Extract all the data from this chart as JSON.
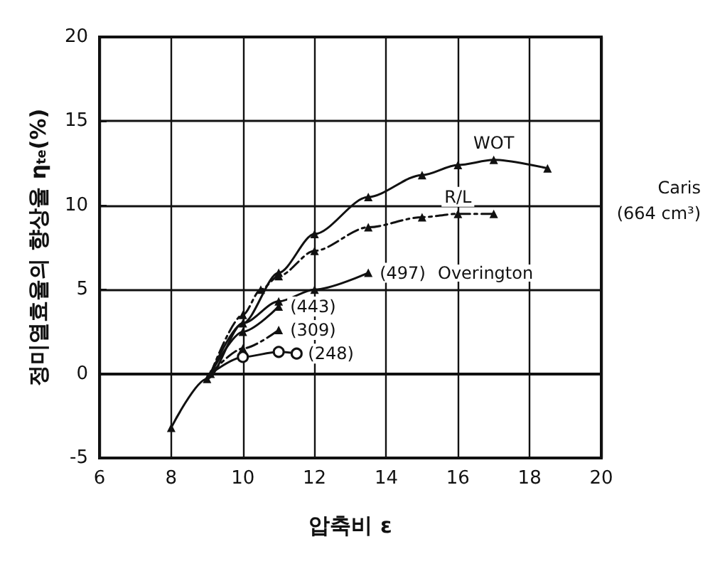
{
  "chart_data": {
    "type": "line",
    "xlabel": "압축비 ε",
    "ylabel": "정미열효율의 향상율 η$_{te}$(%)",
    "xlim": [
      6,
      20
    ],
    "xticks": [
      6,
      8,
      10,
      12,
      14,
      16,
      18,
      20
    ],
    "ylim": [
      -5,
      20
    ],
    "yticks": [
      -5,
      0,
      5,
      10,
      15,
      20
    ],
    "grid": true,
    "legend": false,
    "marker": "triangle",
    "line_style": "solid",
    "series": [
      {
        "name": "WOT",
        "color": "#111111",
        "x": [
          8,
          9,
          10,
          11,
          12,
          13.5,
          15,
          16,
          17,
          18.5
        ],
        "values": [
          -3.2,
          -0.3,
          3,
          6,
          8.3,
          10.5,
          11.8,
          12.4,
          12.7,
          12.2
        ]
      },
      {
        "name": "R/L",
        "color": "#111111",
        "line_style": "dashed",
        "x": [
          9.1,
          10,
          10.5,
          11,
          12,
          13.5,
          15,
          16,
          17
        ],
        "values": [
          0,
          3.5,
          5,
          5.8,
          7.3,
          8.7,
          9.3,
          9.5,
          9.5
        ]
      },
      {
        "name": "(497)",
        "color": "#111111",
        "x": [
          9.1,
          10,
          11,
          12,
          13.5
        ],
        "values": [
          0,
          3,
          4.3,
          5,
          6
        ]
      },
      {
        "name": "(443)",
        "color": "#111111",
        "x": [
          9.1,
          10,
          11
        ],
        "values": [
          0,
          2.5,
          4
        ]
      },
      {
        "name": "(309)",
        "color": "#111111",
        "line_style": "dashed",
        "x": [
          9.1,
          10,
          11
        ],
        "values": [
          0,
          1.5,
          2.6
        ]
      },
      {
        "name": "(248)",
        "color": "#111111",
        "marker": "circle",
        "x": [
          9.1,
          10,
          11,
          11.5
        ],
        "values": [
          0,
          1,
          1.3,
          1.2
        ]
      }
    ],
    "annotations": [
      "Overington",
      "Caris",
      "(664 cm³)"
    ]
  }
}
